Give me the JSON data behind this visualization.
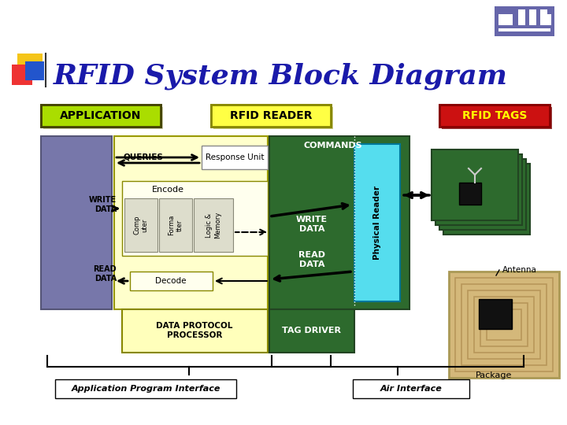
{
  "title": "RFID System Block Diagram",
  "title_color": "#1a1aaa",
  "bg_color": "#ffffff",
  "header_app": "APPLICATION",
  "header_reader": "RFID READER",
  "header_tags": "RFID TAGS",
  "app_header_bg": "#aadd00",
  "reader_header_bg": "#ffff44",
  "tags_header_bg": "#cc1111",
  "tags_header_text": "#ffff00",
  "queries_text": "QUERIES",
  "response_unit_text": "Response Unit",
  "write_data_left": "WRITE\nDATA",
  "read_data_left": "READ\nDATA",
  "encode_text": "Encode",
  "decode_text": "Decode",
  "comp_text": "Comp\nuter",
  "forma_text": "Forma\ntter",
  "logic_text": "Logic &\nMemory",
  "commands_text": "COMMANDS",
  "write_data_right": "WRITE\nDATA",
  "read_data_right": "READ\nDATA",
  "physical_reader_text": "Physical Reader",
  "data_protocol_text": "DATA PROTOCOL\nPROCESSOR",
  "tag_driver_text": "TAG DRIVER",
  "app_interface_text": "Application Program Interface",
  "air_interface_text": "Air Interface",
  "antenna_text": "Antenna",
  "package_text": "Package",
  "app_block_color": "#7777aa",
  "reader_area_color": "#ffffcc",
  "green_dark": "#2d6a2d",
  "physical_reader_color": "#55ddee",
  "green_tag_color": "#2d6a2d"
}
